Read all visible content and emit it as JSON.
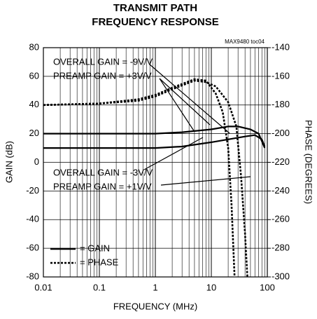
{
  "chart_data": {
    "type": "line",
    "title": [
      "TRANSMIT PATH",
      "FREQUENCY RESPONSE"
    ],
    "note": "MAX9480 toc04",
    "x_label": "FREQUENCY (MHz)",
    "y_label": "GAIN (dB)",
    "y2_label": "PHASE (DEGREES)",
    "log_x": true,
    "grid": true,
    "xlim": [
      0.01,
      100
    ],
    "xticks": [
      0.01,
      0.1,
      1,
      10,
      100
    ],
    "ylim": [
      -80,
      80
    ],
    "yticks": [
      -80,
      -60,
      -40,
      -20,
      0,
      20,
      40,
      60,
      80
    ],
    "y2lim": [
      -300,
      -140
    ],
    "y2ticks": [
      -300,
      -280,
      -260,
      -240,
      -220,
      -200,
      -180,
      -160,
      -140
    ],
    "annotations": [
      "OVERALL GAIN = -9V/V",
      "PREAMP GAIN = +3V/V",
      "OVERALL GAIN = -3V/V",
      "PREAMP GAIN = +1V/V"
    ],
    "legend": [
      {
        "label": "= GAIN",
        "style": "solid"
      },
      {
        "label": "= PHASE",
        "style": "dotted"
      }
    ],
    "series": [
      {
        "color": "#000000",
        "style": "solid",
        "x": [
          0.01,
          0.1,
          1,
          3,
          10,
          20,
          30,
          50,
          70,
          90
        ],
        "values": [
          20,
          20,
          20,
          21,
          23,
          25,
          25,
          23,
          20,
          10
        ]
      },
      {
        "color": "#000000",
        "style": "solid",
        "x": [
          0.01,
          0.1,
          1,
          3,
          10,
          20,
          40,
          60,
          80,
          90
        ],
        "values": [
          10,
          10,
          10,
          11,
          14,
          16,
          18,
          19,
          16,
          11
        ]
      },
      {
        "color": "#000000",
        "style": "dotted",
        "axis": "y2",
        "x": [
          0.01,
          0.1,
          0.5,
          1,
          2,
          5,
          8,
          12,
          16,
          20,
          23,
          26
        ],
        "values": [
          -180,
          -179,
          -176,
          -173,
          -168,
          -162,
          -163,
          -172,
          -185,
          -210,
          -250,
          -300
        ]
      },
      {
        "color": "#000000",
        "style": "dotted",
        "axis": "y2",
        "x": [
          0.01,
          0.1,
          0.5,
          1,
          2,
          5,
          8,
          12,
          20,
          28,
          34,
          40,
          44
        ],
        "values": [
          -180,
          -179,
          -177,
          -174,
          -169,
          -163,
          -164,
          -167,
          -178,
          -195,
          -230,
          -270,
          -300
        ]
      }
    ]
  }
}
